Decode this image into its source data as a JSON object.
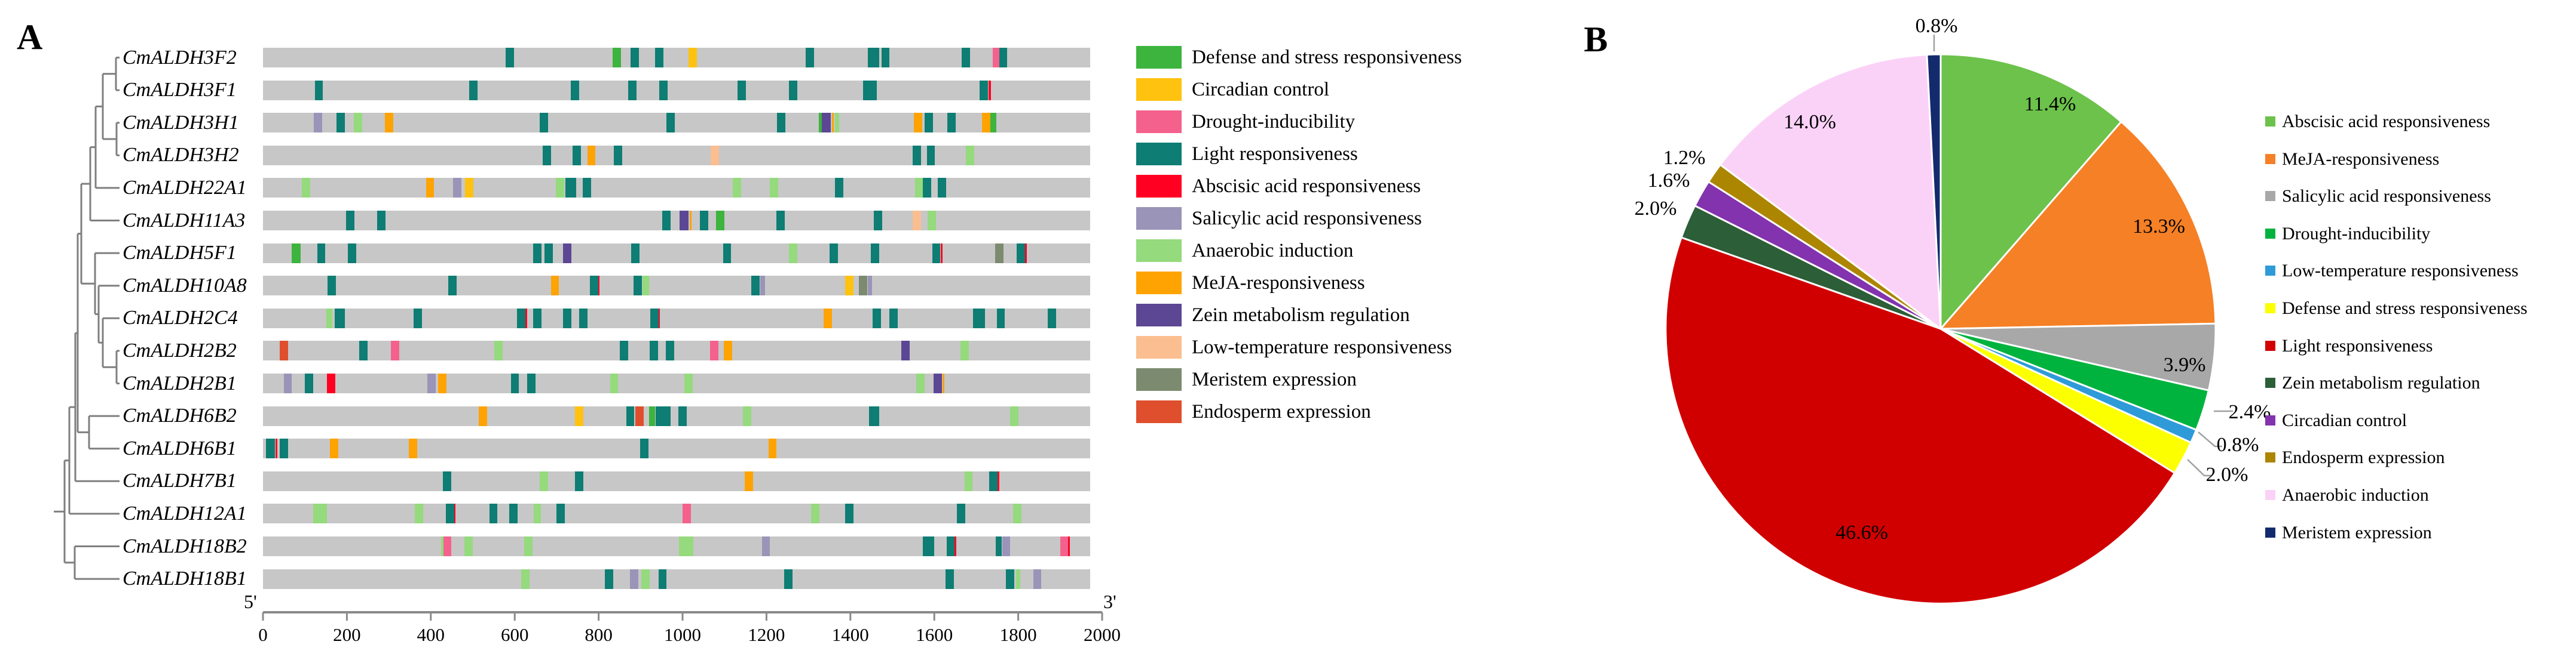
{
  "panel_a": {
    "label": "A",
    "legend": [
      {
        "key": "DG",
        "label": "Defense and stress responsiveness",
        "color": "#3CB43E"
      },
      {
        "key": "CY",
        "label": "Circadian control",
        "color": "#FFC20E"
      },
      {
        "key": "DP",
        "label": "Drought-inducibility",
        "color": "#F4618C"
      },
      {
        "key": "LT",
        "label": "Light responsiveness",
        "color": "#0E7D74"
      },
      {
        "key": "AR",
        "label": "Abscisic acid responsiveness",
        "color": "#FF0023"
      },
      {
        "key": "SA",
        "label": "Salicylic acid responsiveness",
        "color": "#9A94B8"
      },
      {
        "key": "AN",
        "label": "Anaerobic induction",
        "color": "#95DA7D"
      },
      {
        "key": "MO",
        "label": "MeJA-responsiveness",
        "color": "#FFA303"
      },
      {
        "key": "ZP",
        "label": "Zein metabolism regulation",
        "color": "#5C4795"
      },
      {
        "key": "LP",
        "label": "Low-temperature responsiveness",
        "color": "#FBBE90"
      },
      {
        "key": "ME",
        "label": "Meristem expression",
        "color": "#7C8B70"
      },
      {
        "key": "EE",
        "label": "Endosperm expression",
        "color": "#DF4F2D"
      }
    ],
    "axis": {
      "five_prime": "5'",
      "three_prime": "3'",
      "range": [
        0,
        2000
      ],
      "ticks": [
        "0",
        "200",
        "400",
        "600",
        "800",
        "1000",
        "1200",
        "1400",
        "1600",
        "1800",
        "2000"
      ]
    },
    "genes": [
      {
        "name": "CmALDH3F2",
        "elements": [
          [
            597,
            "LT"
          ],
          [
            855,
            "DG"
          ],
          [
            899,
            "LT"
          ],
          [
            958,
            "LT"
          ],
          [
            1039,
            "CY"
          ],
          [
            1322,
            "LT"
          ],
          [
            1476,
            "LT",
            28
          ],
          [
            1505,
            "LT"
          ],
          [
            1700,
            "LT"
          ],
          [
            1772,
            "DP",
            16
          ],
          [
            1790,
            "LT",
            18
          ]
        ]
      },
      {
        "name": "CmALDH3F1",
        "elements": [
          [
            135,
            "LT"
          ],
          [
            509,
            "LT"
          ],
          [
            754,
            "LT"
          ],
          [
            893,
            "LT"
          ],
          [
            968,
            "LT"
          ],
          [
            1157,
            "LT"
          ],
          [
            1282,
            "LT"
          ],
          [
            1468,
            "LT",
            33
          ],
          [
            1743,
            "LT"
          ],
          [
            1757,
            "AR",
            5
          ]
        ]
      },
      {
        "name": "CmALDH3H1",
        "elements": [
          [
            133,
            "SA"
          ],
          [
            188,
            "LT"
          ],
          [
            230,
            "AN"
          ],
          [
            305,
            "MO"
          ],
          [
            679,
            "LT"
          ],
          [
            985,
            "LT"
          ],
          [
            1253,
            "LT"
          ],
          [
            1348,
            "DG",
            7
          ],
          [
            1362,
            "ZP",
            22
          ],
          [
            1378,
            "MO",
            5
          ],
          [
            1388,
            "AN",
            11
          ],
          [
            1584,
            "MO"
          ],
          [
            1610,
            "LT"
          ],
          [
            1665,
            "LT"
          ],
          [
            1748,
            "MO"
          ],
          [
            1766,
            "DG",
            14
          ]
        ]
      },
      {
        "name": "CmALDH3H2",
        "elements": [
          [
            687,
            "LT"
          ],
          [
            759,
            "LT"
          ],
          [
            794,
            "MO"
          ],
          [
            858,
            "LT"
          ],
          [
            1092,
            "LP"
          ],
          [
            1581,
            "LT"
          ],
          [
            1615,
            "LT"
          ],
          [
            1709,
            "AN"
          ]
        ]
      },
      {
        "name": "CmALDH22A1",
        "elements": [
          [
            104,
            "AN"
          ],
          [
            404,
            "MO"
          ],
          [
            470,
            "SA"
          ],
          [
            498,
            "CY"
          ],
          [
            718,
            "AN"
          ],
          [
            744,
            "LT",
            26
          ],
          [
            783,
            "LT"
          ],
          [
            1146,
            "AN"
          ],
          [
            1235,
            "AN"
          ],
          [
            1393,
            "LT"
          ],
          [
            1586,
            "AN"
          ],
          [
            1606,
            "LT"
          ],
          [
            1642,
            "LT"
          ]
        ]
      },
      {
        "name": "CmALDH11A3",
        "elements": [
          [
            211,
            "LT"
          ],
          [
            286,
            "LT"
          ],
          [
            975,
            "LT"
          ],
          [
            1018,
            "ZP",
            22
          ],
          [
            1034,
            "MO",
            5
          ],
          [
            1067,
            "LT"
          ],
          [
            1105,
            "DG"
          ],
          [
            1252,
            "LT"
          ],
          [
            1487,
            "LT"
          ],
          [
            1581,
            "LP"
          ],
          [
            1617,
            "AN"
          ]
        ]
      },
      {
        "name": "CmALDH5F1",
        "elements": [
          [
            80,
            "DG",
            22
          ],
          [
            141,
            "LT"
          ],
          [
            215,
            "LT"
          ],
          [
            663,
            "LT"
          ],
          [
            691,
            "LT"
          ],
          [
            736,
            "ZP"
          ],
          [
            900,
            "LT"
          ],
          [
            1122,
            "LT"
          ],
          [
            1282,
            "AN"
          ],
          [
            1380,
            "LT"
          ],
          [
            1480,
            "LT"
          ],
          [
            1628,
            "LT"
          ],
          [
            1641,
            "AR",
            5
          ],
          [
            1780,
            "ME"
          ],
          [
            1832,
            "LT"
          ],
          [
            1845,
            "AR",
            5
          ]
        ]
      },
      {
        "name": "CmALDH10A8",
        "elements": [
          [
            166,
            "LT"
          ],
          [
            458,
            "LT"
          ],
          [
            706,
            "MO"
          ],
          [
            801,
            "LT"
          ],
          [
            812,
            "AR",
            4
          ],
          [
            906,
            "LT"
          ],
          [
            925,
            "AN",
            16
          ],
          [
            1191,
            "LT"
          ],
          [
            1208,
            "SA",
            12
          ],
          [
            1418,
            "CY"
          ],
          [
            1451,
            "ME"
          ],
          [
            1467,
            "SA",
            10
          ]
        ]
      },
      {
        "name": "CmALDH2C4",
        "elements": [
          [
            160,
            "AN",
            14
          ],
          [
            186,
            "LT",
            24
          ],
          [
            374,
            "LT"
          ],
          [
            624,
            "LT"
          ],
          [
            637,
            "AR",
            4
          ],
          [
            663,
            "LT"
          ],
          [
            735,
            "LT"
          ],
          [
            775,
            "LT"
          ],
          [
            946,
            "LT"
          ],
          [
            958,
            "AR",
            4
          ],
          [
            1366,
            "MO"
          ],
          [
            1484,
            "LT"
          ],
          [
            1525,
            "LT"
          ],
          [
            1731,
            "LT",
            28
          ],
          [
            1784,
            "LT"
          ],
          [
            1907,
            "LT"
          ]
        ]
      },
      {
        "name": "CmALDH2B2",
        "elements": [
          [
            50,
            "EE"
          ],
          [
            243,
            "LT"
          ],
          [
            319,
            "DP"
          ],
          [
            569,
            "AN"
          ],
          [
            873,
            "LT"
          ],
          [
            945,
            "LT"
          ],
          [
            984,
            "LT"
          ],
          [
            1091,
            "DP"
          ],
          [
            1124,
            "MO"
          ],
          [
            1554,
            "ZP"
          ],
          [
            1696,
            "AN"
          ]
        ]
      },
      {
        "name": "CmALDH2B1",
        "elements": [
          [
            60,
            "SA"
          ],
          [
            111,
            "LT"
          ],
          [
            165,
            "AR"
          ],
          [
            407,
            "SA"
          ],
          [
            434,
            "MO"
          ],
          [
            609,
            "LT"
          ],
          [
            649,
            "LT"
          ],
          [
            849,
            "AN"
          ],
          [
            1029,
            "AN"
          ],
          [
            1590,
            "AN"
          ],
          [
            1631,
            "ZP"
          ],
          [
            1645,
            "MO",
            5
          ]
        ]
      },
      {
        "name": "CmALDH6B2",
        "elements": [
          [
            532,
            "MO"
          ],
          [
            764,
            "CY"
          ],
          [
            888,
            "LT"
          ],
          [
            910,
            "EE"
          ],
          [
            941,
            "DG",
            14
          ],
          [
            968,
            "LT",
            36
          ],
          [
            1015,
            "LT"
          ],
          [
            1170,
            "AN"
          ],
          [
            1478,
            "LT",
            24
          ],
          [
            1817,
            "AN"
          ]
        ]
      },
      {
        "name": "CmALDH6B1",
        "elements": [
          [
            18,
            "LT",
            22
          ],
          [
            32,
            "AR",
            4
          ],
          [
            51,
            "LT"
          ],
          [
            172,
            "MO"
          ],
          [
            363,
            "MO"
          ],
          [
            922,
            "LT"
          ],
          [
            1232,
            "MO"
          ]
        ]
      },
      {
        "name": "CmALDH7B1",
        "elements": [
          [
            445,
            "LT"
          ],
          [
            679,
            "AN"
          ],
          [
            764,
            "LT"
          ],
          [
            1175,
            "MO"
          ],
          [
            1706,
            "AN"
          ],
          [
            1766,
            "LT"
          ],
          [
            1778,
            "AR",
            4
          ]
        ]
      },
      {
        "name": "CmALDH12A1",
        "elements": [
          [
            138,
            "AN",
            34
          ],
          [
            377,
            "AN"
          ],
          [
            452,
            "LT"
          ],
          [
            464,
            "AR",
            4
          ],
          [
            557,
            "LT"
          ],
          [
            605,
            "LT"
          ],
          [
            663,
            "AN",
            18
          ],
          [
            720,
            "LT"
          ],
          [
            1025,
            "DP"
          ],
          [
            1335,
            "AN"
          ],
          [
            1418,
            "LT"
          ],
          [
            1688,
            "LT"
          ],
          [
            1824,
            "AN"
          ]
        ]
      },
      {
        "name": "CmALDH18B2",
        "elements": [
          [
            434,
            "AN",
            7
          ],
          [
            446,
            "DP",
            18
          ],
          [
            497,
            "AN"
          ],
          [
            642,
            "AN"
          ],
          [
            1023,
            "AN",
            34
          ],
          [
            1216,
            "SA"
          ],
          [
            1609,
            "LT",
            28
          ],
          [
            1663,
            "LT"
          ],
          [
            1674,
            "AR",
            4
          ],
          [
            1779,
            "LT",
            14
          ],
          [
            1797,
            "SA"
          ],
          [
            1938,
            "DP"
          ],
          [
            1949,
            "AR",
            4
          ]
        ]
      },
      {
        "name": "CmALDH18B1",
        "elements": [
          [
            634,
            "AN"
          ],
          [
            837,
            "LT"
          ],
          [
            898,
            "SA"
          ],
          [
            925,
            "AN"
          ],
          [
            966,
            "LT"
          ],
          [
            1270,
            "LT"
          ],
          [
            1661,
            "LT"
          ],
          [
            1806,
            "LT"
          ],
          [
            1826,
            "AN",
            11
          ],
          [
            1872,
            "SA"
          ]
        ]
      }
    ]
  },
  "panel_b": {
    "label": "B"
  },
  "chart_data": {
    "type": "pie",
    "title": "",
    "start_at_top_clockwise": true,
    "categories": [
      "Abscisic acid responsiveness",
      "MeJA-responsiveness",
      "Salicylic acid responsiveness",
      "Drought-inducibility",
      "Low-temperature responsiveness",
      "Defense and stress responsiveness",
      "Light responsiveness",
      "Zein metabolism regulation",
      "Circadian control",
      "Endosperm expression",
      "Anaerobic induction",
      "Meristem expression"
    ],
    "values": [
      11.4,
      13.3,
      3.9,
      2.4,
      0.8,
      2.0,
      46.6,
      2.0,
      1.6,
      1.2,
      14.0,
      0.8
    ],
    "labels": [
      "11.4%",
      "13.3%",
      "3.9%",
      "2.4%",
      "0.8%",
      "2.0%",
      "46.6%",
      "2.0%",
      "1.6%",
      "1.2%",
      "14.0%",
      "0.8%"
    ],
    "colors": [
      "#6CC24B",
      "#F58026",
      "#A8A8A8",
      "#00B33E",
      "#2E9BD8",
      "#FBFF00",
      "#D10000",
      "#2C5E38",
      "#8333AE",
      "#AC8600",
      "#FBD2F7",
      "#132A6D"
    ],
    "legend_position": "right",
    "grid": false
  }
}
